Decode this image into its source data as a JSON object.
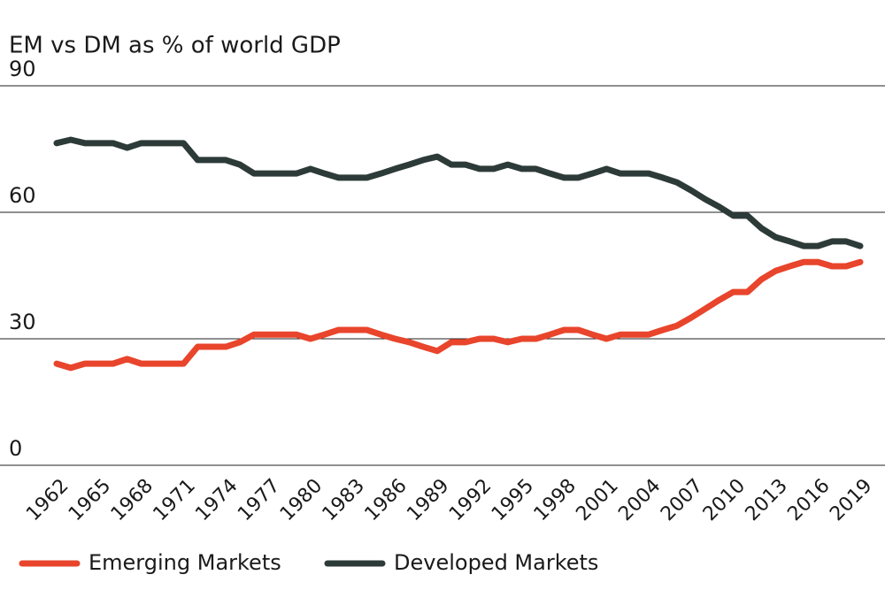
{
  "chart_data": {
    "type": "line",
    "title": "EM vs DM as % of world GDP",
    "x": [
      1962,
      1963,
      1964,
      1965,
      1966,
      1967,
      1968,
      1969,
      1970,
      1971,
      1972,
      1973,
      1974,
      1975,
      1976,
      1977,
      1978,
      1979,
      1980,
      1981,
      1982,
      1983,
      1984,
      1985,
      1986,
      1987,
      1988,
      1989,
      1990,
      1991,
      1992,
      1993,
      1994,
      1995,
      1996,
      1997,
      1998,
      1999,
      2000,
      2001,
      2002,
      2003,
      2004,
      2005,
      2006,
      2007,
      2008,
      2009,
      2010,
      2011,
      2012,
      2013,
      2014,
      2015,
      2016,
      2017,
      2018,
      2019
    ],
    "series": [
      {
        "name": "Emerging Markets",
        "color": "#e8452c",
        "values": [
          24.1,
          23.1,
          24.1,
          24.1,
          24.1,
          25.2,
          24.1,
          24.1,
          24.1,
          24.1,
          28.1,
          28.1,
          28.1,
          29.2,
          31.0,
          31.0,
          31.0,
          31.0,
          30.0,
          31.0,
          32.1,
          32.1,
          32.1,
          31.0,
          30.0,
          29.2,
          28.1,
          27.1,
          29.2,
          29.2,
          30.0,
          30.0,
          29.2,
          30.0,
          30.0,
          31.0,
          32.1,
          32.1,
          31.0,
          30.0,
          31.0,
          31.0,
          31.0,
          32.1,
          33.1,
          35.0,
          37.1,
          39.2,
          41.1,
          41.1,
          44.1,
          46.1,
          47.2,
          48.2,
          48.2,
          47.2,
          47.2,
          48.2
        ]
      },
      {
        "name": "Developed Markets",
        "color": "#2d3b38",
        "values": [
          76.4,
          77.2,
          76.4,
          76.4,
          76.4,
          75.3,
          76.4,
          76.4,
          76.4,
          76.4,
          72.4,
          72.4,
          72.4,
          71.3,
          69.2,
          69.2,
          69.2,
          69.2,
          70.3,
          69.2,
          68.2,
          68.2,
          68.2,
          69.2,
          70.3,
          71.3,
          72.4,
          73.2,
          71.3,
          71.3,
          70.3,
          70.3,
          71.3,
          70.3,
          70.3,
          69.2,
          68.2,
          68.2,
          69.2,
          70.3,
          69.2,
          69.2,
          69.2,
          68.2,
          67.1,
          65.2,
          63.1,
          61.3,
          59.2,
          59.2,
          56.2,
          54.1,
          53.1,
          52.0,
          52.0,
          53.1,
          53.1,
          52.0
        ]
      }
    ],
    "xlim": [
      1962,
      2019
    ],
    "xticks": [
      1962,
      1965,
      1968,
      1971,
      1974,
      1977,
      1980,
      1983,
      1986,
      1989,
      1992,
      1995,
      1998,
      2001,
      2004,
      2007,
      2010,
      2013,
      2016,
      2019
    ],
    "ylim": [
      0,
      90
    ],
    "yticks": [
      0,
      30,
      60,
      90
    ],
    "grid": true,
    "legend": "bottom"
  }
}
